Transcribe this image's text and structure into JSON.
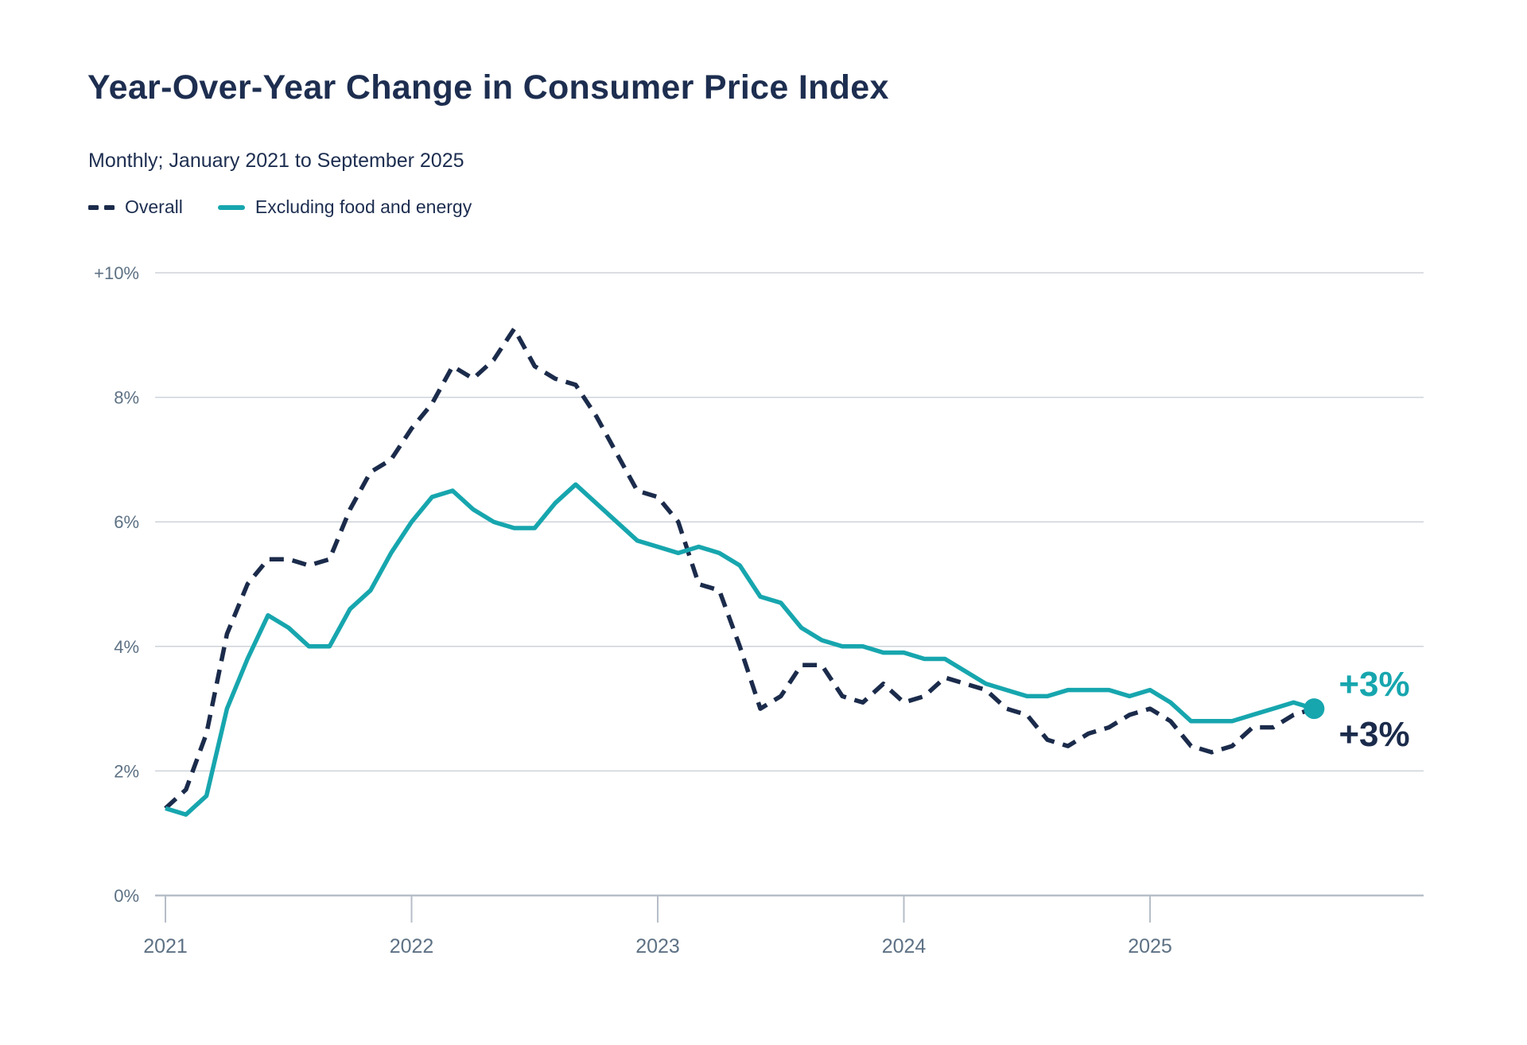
{
  "header": {
    "title": "Year-Over-Year Change in Consumer Price Index",
    "subtitle": "Monthly; January 2021 to September 2025"
  },
  "legend": {
    "items": [
      {
        "label": "Overall",
        "swatch": "dashed-navy-line"
      },
      {
        "label": "Excluding food and energy",
        "swatch": "solid-teal-line"
      }
    ]
  },
  "colors": {
    "navy": "#1b2b4b",
    "teal": "#17a6ae",
    "title_text": "#1d2e50",
    "axis_label": "#5d7184",
    "gridline": "#cdd3da",
    "axis_line": "#b6bec7"
  },
  "chart_data": {
    "type": "line",
    "title": "Year-Over-Year Change in Consumer Price Index",
    "subtitle": "Monthly; January 2021 to September 2025",
    "x_unit": "month",
    "x_start": "2021-01",
    "x_end": "2025-09",
    "x_tick_labels": [
      "2021",
      "2022",
      "2023",
      "2024",
      "2025"
    ],
    "y_ticks": [
      {
        "label": "+10%",
        "value": 10
      },
      {
        "label": "8%",
        "value": 8
      },
      {
        "label": "6%",
        "value": 6
      },
      {
        "label": "4%",
        "value": 4
      },
      {
        "label": "2%",
        "value": 2
      },
      {
        "label": "0%",
        "value": 0
      }
    ],
    "ylim": [
      0,
      10
    ],
    "grid": "horizontal",
    "legend_position": "top-left",
    "series": [
      {
        "name": "Overall",
        "style": "dashed",
        "color_key": "navy",
        "end_label": "+3%",
        "end_dot": false,
        "values": [
          1.4,
          1.7,
          2.6,
          4.2,
          5.0,
          5.4,
          5.4,
          5.3,
          5.4,
          6.2,
          6.8,
          7.0,
          7.5,
          7.9,
          8.5,
          8.3,
          8.6,
          9.1,
          8.5,
          8.3,
          8.2,
          7.7,
          7.1,
          6.5,
          6.4,
          6.0,
          5.0,
          4.9,
          4.0,
          3.0,
          3.2,
          3.7,
          3.7,
          3.2,
          3.1,
          3.4,
          3.1,
          3.2,
          3.5,
          3.4,
          3.3,
          3.0,
          2.9,
          2.5,
          2.4,
          2.6,
          2.7,
          2.9,
          3.0,
          2.8,
          2.4,
          2.3,
          2.4,
          2.7,
          2.7,
          2.9,
          3.0
        ]
      },
      {
        "name": "Excluding food and energy",
        "style": "solid",
        "color_key": "teal",
        "end_label": "+3%",
        "end_dot": true,
        "values": [
          1.4,
          1.3,
          1.6,
          3.0,
          3.8,
          4.5,
          4.3,
          4.0,
          4.0,
          4.6,
          4.9,
          5.5,
          6.0,
          6.4,
          6.5,
          6.2,
          6.0,
          5.9,
          5.9,
          6.3,
          6.6,
          6.3,
          6.0,
          5.7,
          5.6,
          5.5,
          5.6,
          5.5,
          5.3,
          4.8,
          4.7,
          4.3,
          4.1,
          4.0,
          4.0,
          3.9,
          3.9,
          3.8,
          3.8,
          3.6,
          3.4,
          3.3,
          3.2,
          3.2,
          3.3,
          3.3,
          3.3,
          3.2,
          3.3,
          3.1,
          2.8,
          2.8,
          2.8,
          2.9,
          3.0,
          3.1,
          3.0
        ]
      }
    ]
  }
}
